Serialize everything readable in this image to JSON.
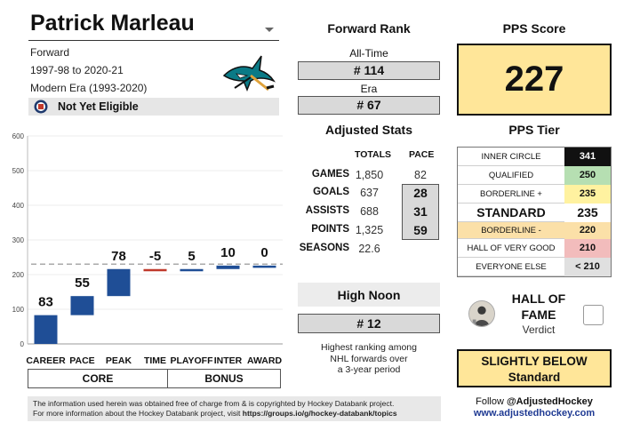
{
  "player": {
    "name": "Patrick Marleau",
    "position": "Forward",
    "seasons_range": "1997-98 to 2020-21",
    "era": "Modern Era (1993-2020)",
    "eligibility": "Not Yet Eligible"
  },
  "chart_data": {
    "type": "bar",
    "subtype": "waterfall",
    "categories": [
      "CAREER",
      "PACE",
      "PEAK",
      "TIME",
      "PLAYOFF",
      "INTER",
      "AWARD"
    ],
    "values": [
      83,
      55,
      78,
      -5,
      5,
      10,
      0
    ],
    "value_labels": [
      "83",
      "55",
      "78",
      "-5",
      "5",
      "10",
      "0"
    ],
    "ylim": [
      0,
      600
    ],
    "yticks": [
      0,
      100,
      200,
      300,
      400,
      500,
      600
    ],
    "ytick_labels": [
      "0",
      "100",
      "200",
      "300",
      "400",
      "500",
      "600"
    ],
    "threshold": 230,
    "groups": [
      "CORE",
      "BONUS"
    ],
    "colors": {
      "positive": "#1f4e96",
      "negative": "#c0392b",
      "threshold": "#aaaaaa"
    }
  },
  "forward_rank": {
    "title": "Forward Rank",
    "all_time_label": "All-Time",
    "all_time_value": "# 114",
    "era_label": "Era",
    "era_value": "# 67"
  },
  "adjusted_stats": {
    "title": "Adjusted Stats",
    "col_totals": "TOTALS",
    "col_pace": "PACE",
    "rows": [
      {
        "label": "GAMES",
        "total": "1,850",
        "pace": "82"
      },
      {
        "label": "GOALS",
        "total": "637",
        "pace": "28"
      },
      {
        "label": "ASSISTS",
        "total": "688",
        "pace": "31"
      },
      {
        "label": "POINTS",
        "total": "1,325",
        "pace": "59"
      },
      {
        "label": "SEASONS",
        "total": "22.6",
        "pace": ""
      }
    ]
  },
  "high_noon": {
    "title": "High Noon",
    "value": "# 12",
    "description_lines": [
      "Highest ranking among",
      "NHL forwards over",
      "a 3-year period"
    ]
  },
  "pps": {
    "title": "PPS Score",
    "score": "227",
    "tier_title": "PPS Tier",
    "tiers": [
      {
        "label": "INNER CIRCLE",
        "value": "341",
        "color": "#111111",
        "text_color": "#ffffff"
      },
      {
        "label": "QUALIFIED",
        "value": "250",
        "color": "#b6dfb2",
        "text_color": "#111111"
      },
      {
        "label": "BORDERLINE +",
        "value": "235",
        "color": "#fff2a0",
        "text_color": "#111111"
      },
      {
        "label": "STANDARD",
        "value": "235",
        "color": "#ffffff",
        "text_color": "#111111"
      },
      {
        "label": "BORDERLINE -",
        "value": "220",
        "color": "#fbe0a8",
        "text_color": "#111111"
      },
      {
        "label": "HALL OF VERY GOOD",
        "value": "210",
        "color": "#f2bcbc",
        "text_color": "#111111"
      },
      {
        "label": "EVERYONE ELSE",
        "value": "< 210",
        "color": "#e0e0e0",
        "text_color": "#111111"
      }
    ],
    "label_highlight": "#fbe0a8"
  },
  "hall_of_fame": {
    "title_line1": "HALL OF",
    "title_line2": "FAME",
    "verdict_label": "Verdict",
    "checked": false
  },
  "verdict": {
    "line1": "SLIGHTLY BELOW",
    "line2": "Standard"
  },
  "social": {
    "follow_prefix": "Follow ",
    "handle": "@AdjustedHockey",
    "website": "www.adjustedhockey.com"
  },
  "footer": {
    "line1": "The information used herein was obtained free of charge from & is copyrighted by Hockey Databank project.",
    "line2_prefix": "For more information about the Hockey Databank project, visit ",
    "line2_link": "https://groups.io/g/hockey-databank/topics"
  }
}
